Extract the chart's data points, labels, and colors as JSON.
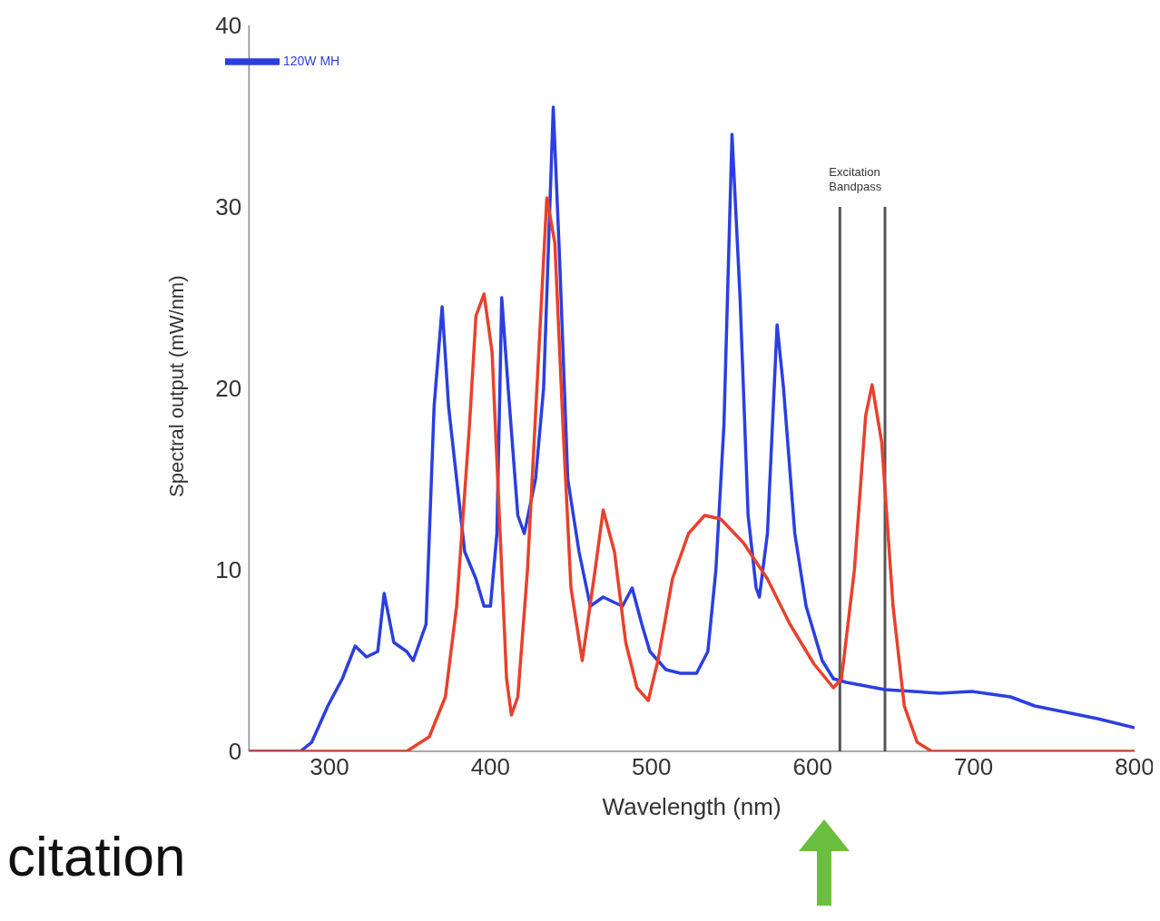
{
  "chart_data": {
    "type": "line",
    "xlabel": "Wavelength (nm)",
    "ylabel": "Spectral output (mW/nm)",
    "xlim": [
      250,
      800
    ],
    "xticks": [
      300,
      400,
      500,
      600,
      700,
      800
    ],
    "ylim": [
      0,
      40
    ],
    "yticks": [
      0,
      10,
      20,
      30,
      40
    ],
    "legend": "top left",
    "marker": "none",
    "line_style": "solid",
    "series": [
      {
        "name": "120W MH",
        "color": "#2b3fe0",
        "x": [
          250,
          282,
          289,
          299,
          308,
          316,
          323,
          330,
          334,
          340,
          348,
          352,
          360,
          365,
          370,
          374,
          384,
          391,
          396,
          400,
          404,
          407,
          411,
          417,
          421,
          428,
          433,
          439,
          443,
          448,
          455,
          462,
          470,
          477,
          482,
          488,
          494,
          499,
          509,
          518,
          528,
          535,
          540,
          545,
          550,
          555,
          560,
          565,
          567,
          572,
          578,
          582,
          589,
          596,
          606,
          613,
          621,
          645,
          679,
          699,
          723,
          738,
          777,
          800
        ],
        "values": [
          0,
          0,
          0.5,
          2.5,
          4,
          5.8,
          5.2,
          5.5,
          8.7,
          6,
          5.5,
          5,
          7,
          19,
          24.5,
          19,
          11,
          9.5,
          8,
          8,
          12,
          25,
          20,
          13,
          12,
          15,
          20,
          35.5,
          27,
          15,
          11,
          8,
          8.5,
          8.2,
          8,
          9,
          7,
          5.5,
          4.5,
          4.3,
          4.3,
          5.5,
          10,
          18,
          34,
          25,
          13,
          9,
          8.5,
          12,
          23.5,
          20,
          12,
          8,
          5,
          4,
          3.8,
          3.4,
          3.2,
          3.3,
          3,
          2.5,
          1.8,
          1.3
        ]
      },
      {
        "color": "#e8412c",
        "x": [
          250,
          348,
          362,
          372,
          379,
          387,
          391,
          396,
          401,
          406,
          410,
          413,
          417,
          423,
          430,
          435,
          440,
          445,
          450,
          457,
          465,
          470,
          477,
          484,
          491,
          498,
          504,
          513,
          523,
          533,
          543,
          557,
          572,
          586,
          601,
          613,
          618,
          626,
          633,
          637,
          643,
          650,
          657,
          665,
          674,
          800
        ],
        "values": [
          0,
          0,
          0.8,
          3,
          8,
          18,
          24,
          25.2,
          22,
          12,
          4,
          2,
          3,
          10,
          22,
          30.5,
          28,
          18,
          9,
          5,
          10,
          13.3,
          11,
          6,
          3.5,
          2.8,
          5,
          9.5,
          12,
          13,
          12.8,
          11.5,
          9.5,
          7,
          4.8,
          3.5,
          4,
          10,
          18.5,
          20.2,
          17,
          8,
          2.5,
          0.5,
          0,
          0
        ]
      }
    ],
    "ref_lines": [
      {
        "axis": "x",
        "value": 617,
        "label": "Excitation Bandpass",
        "color": "#555555"
      },
      {
        "axis": "x",
        "value": 645,
        "color": "#555555"
      }
    ],
    "annotations": [
      "citation"
    ]
  }
}
